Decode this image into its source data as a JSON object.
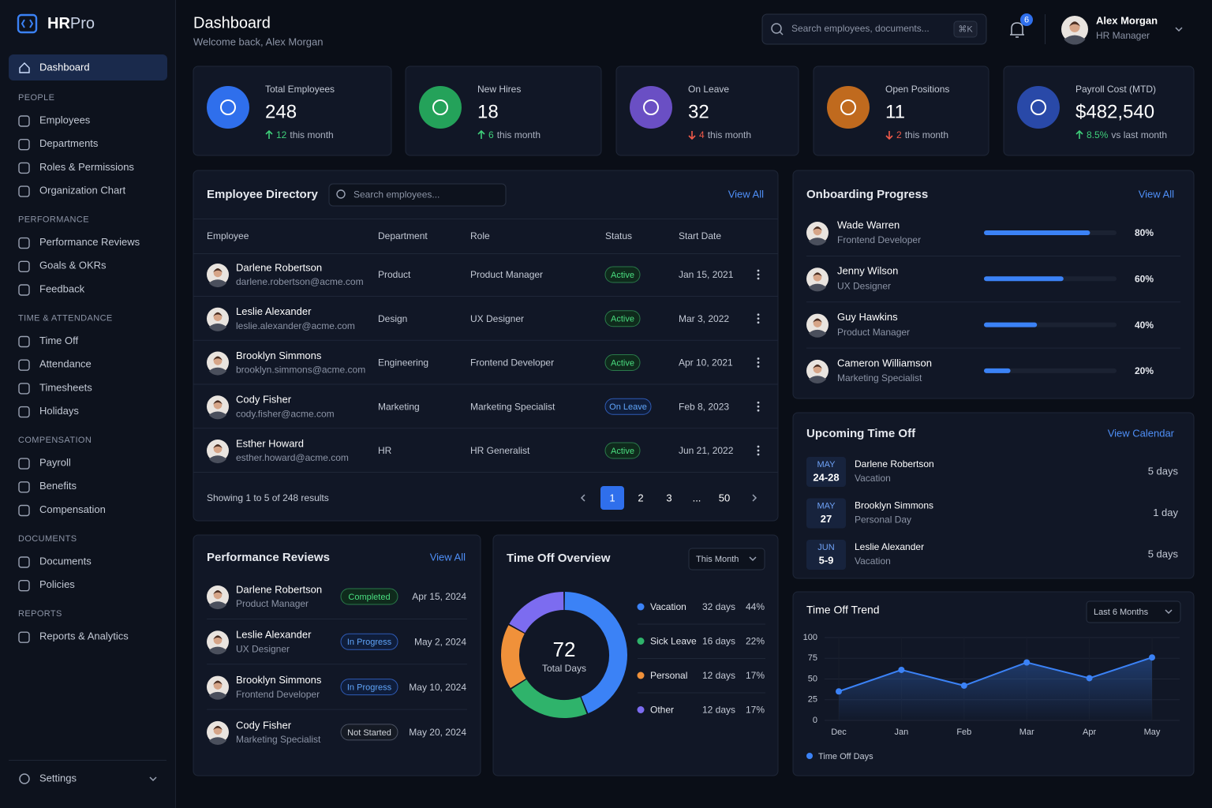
{
  "brand": {
    "a": "HR",
    "b": "Pro"
  },
  "nav": {
    "active": "Dashboard",
    "sections": [
      {
        "title": "PEOPLE",
        "items": [
          "Employees",
          "Departments",
          "Roles & Permissions",
          "Organization Chart"
        ]
      },
      {
        "title": "PERFORMANCE",
        "items": [
          "Performance Reviews",
          "Goals & OKRs",
          "Feedback"
        ]
      },
      {
        "title": "TIME & ATTENDANCE",
        "items": [
          "Time Off",
          "Attendance",
          "Timesheets",
          "Holidays"
        ]
      },
      {
        "title": "COMPENSATION",
        "items": [
          "Payroll",
          "Benefits",
          "Compensation"
        ]
      },
      {
        "title": "DOCUMENTS",
        "items": [
          "Documents",
          "Policies"
        ]
      },
      {
        "title": "REPORTS",
        "items": [
          "Reports & Analytics"
        ]
      }
    ],
    "settings": "Settings"
  },
  "header": {
    "title": "Dashboard",
    "subtitle": "Welcome back, Alex Morgan",
    "search": "Search employees, documents...",
    "shortcut": "⌘K",
    "notifications": "6",
    "user": "Alex Morgan",
    "role": "HR Manager"
  },
  "stats": [
    {
      "label": "Total Employees",
      "value": "248",
      "change": "12",
      "note": "this month",
      "trend": "up",
      "color": "#2f6fec"
    },
    {
      "label": "New Hires",
      "value": "18",
      "change": "6",
      "note": "this month",
      "trend": "up",
      "color": "#24a25a"
    },
    {
      "label": "On Leave",
      "value": "32",
      "change": "4",
      "note": "this month",
      "trend": "down",
      "color": "#6a4fc4"
    },
    {
      "label": "Open Positions",
      "value": "11",
      "change": "2",
      "note": "this month",
      "trend": "down",
      "color": "#c06a1e"
    },
    {
      "label": "Payroll Cost (MTD)",
      "value": "$482,540",
      "change": "8.5%",
      "note": "vs last month",
      "trend": "up",
      "color": "#2949a8"
    }
  ],
  "directory": {
    "title": "Employee Directory",
    "search": "Search employees...",
    "view_all": "View All",
    "columns": [
      "Employee",
      "Department",
      "Role",
      "Status",
      "Start Date"
    ],
    "rows": [
      {
        "name": "Darlene Robertson",
        "email": "darlene.robertson@acme.com",
        "department": "Product",
        "role": "Product Manager",
        "status": "Active",
        "tone": "green",
        "start": "Jan 15, 2021"
      },
      {
        "name": "Leslie Alexander",
        "email": "leslie.alexander@acme.com",
        "department": "Design",
        "role": "UX Designer",
        "status": "Active",
        "tone": "green",
        "start": "Mar 3, 2022"
      },
      {
        "name": "Brooklyn Simmons",
        "email": "brooklyn.simmons@acme.com",
        "department": "Engineering",
        "role": "Frontend Developer",
        "status": "Active",
        "tone": "green",
        "start": "Apr 10, 2021"
      },
      {
        "name": "Cody Fisher",
        "email": "cody.fisher@acme.com",
        "department": "Marketing",
        "role": "Marketing Specialist",
        "status": "On Leave",
        "tone": "blue",
        "start": "Feb 8, 2023"
      },
      {
        "name": "Esther Howard",
        "email": "esther.howard@acme.com",
        "department": "HR",
        "role": "HR Generalist",
        "status": "Active",
        "tone": "green",
        "start": "Jun 21, 2022"
      }
    ],
    "footer": "Showing 1 to 5 of 248 results",
    "pages": [
      "1",
      "2",
      "3",
      "...",
      "50"
    ],
    "active_index": 0
  },
  "onboarding": {
    "title": "Onboarding Progress",
    "view_all": "View All",
    "items": [
      {
        "name": "Wade Warren",
        "role": "Frontend Developer",
        "progress": 80,
        "progress_label": "80%"
      },
      {
        "name": "Jenny Wilson",
        "role": "UX Designer",
        "progress": 60,
        "progress_label": "60%"
      },
      {
        "name": "Guy Hawkins",
        "role": "Product Manager",
        "progress": 40,
        "progress_label": "40%"
      },
      {
        "name": "Cameron Williamson",
        "role": "Marketing Specialist",
        "progress": 20,
        "progress_label": "20%"
      }
    ]
  },
  "upcoming": {
    "title": "Upcoming Time Off",
    "view": "View Calendar",
    "items": [
      {
        "month": "MAY",
        "days": "24-28",
        "name": "Darlene Robertson",
        "type": "Vacation",
        "duration": "5 days"
      },
      {
        "month": "MAY",
        "days": "27",
        "name": "Brooklyn Simmons",
        "type": "Personal Day",
        "duration": "1 day"
      },
      {
        "month": "JUN",
        "days": "5-9",
        "name": "Leslie Alexander",
        "type": "Vacation",
        "duration": "5 days"
      }
    ]
  },
  "reviews": {
    "title": "Performance Reviews",
    "view_all": "View All",
    "items": [
      {
        "name": "Darlene Robertson",
        "role": "Product Manager",
        "status": "Completed",
        "tone": "green",
        "date": "Apr 15, 2024"
      },
      {
        "name": "Leslie Alexander",
        "role": "UX Designer",
        "status": "In Progress",
        "tone": "blue",
        "date": "May 2, 2024"
      },
      {
        "name": "Brooklyn Simmons",
        "role": "Frontend Developer",
        "status": "In Progress",
        "tone": "blue",
        "date": "May 10, 2024"
      },
      {
        "name": "Cody Fisher",
        "role": "Marketing Specialist",
        "status": "Not Started",
        "tone": "gray",
        "date": "May 20, 2024"
      }
    ]
  },
  "chart_data": [
    {
      "type": "pie",
      "title": "Time Off Overview",
      "period": "This Month",
      "center_value": "72",
      "center_label": "Total Days",
      "categories": [
        "Vacation",
        "Sick Leave",
        "Personal",
        "Other"
      ],
      "values": [
        44,
        22,
        17,
        17
      ],
      "value_labels": [
        "44%",
        "22%",
        "17%",
        "17%"
      ],
      "days_labels": [
        "32 days",
        "16 days",
        "12 days",
        "12 days"
      ],
      "colors": [
        "#3b82f6",
        "#2fb36b",
        "#f0913a",
        "#7c6cf0"
      ]
    },
    {
      "type": "line",
      "title": "Time Off Trend",
      "period": "Last 6 Months",
      "categories": [
        "Dec",
        "Jan",
        "Feb",
        "Mar",
        "Apr",
        "May"
      ],
      "series": [
        {
          "name": "Time Off Days",
          "color": "#3b82f6",
          "values": [
            35,
            61,
            42,
            70,
            51,
            76
          ]
        }
      ],
      "ylim": [
        0,
        100
      ],
      "yticks": [
        0,
        25,
        50,
        75,
        100
      ],
      "grid": true
    }
  ]
}
